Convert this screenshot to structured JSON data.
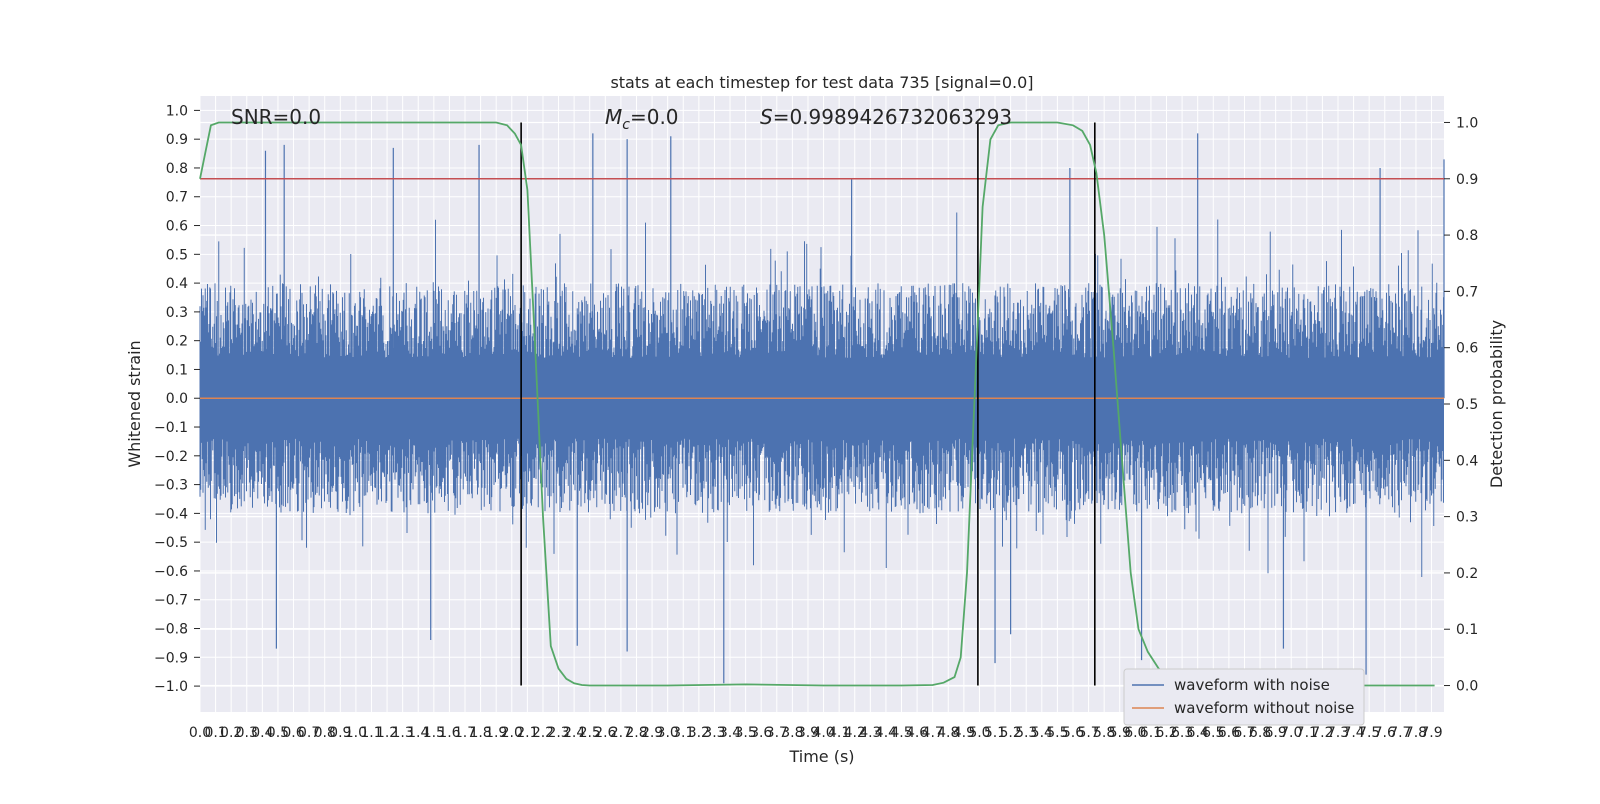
{
  "chart_data": {
    "type": "line",
    "title": "stats at each timestep for test data 735 [signal=0.0]",
    "xlabel": "Time (s)",
    "ylabel_left": "Whitened strain",
    "ylabel_right": "Detection probability",
    "xlim": [
      0.0,
      7.98
    ],
    "ylim_left": [
      -1.09,
      1.05
    ],
    "ylim_right": [
      -0.047,
      1.047
    ],
    "x_tick_labels": [
      "0.0",
      "0.1",
      "0.2",
      "0.3",
      "0.4",
      "0.5",
      "0.6",
      "0.7",
      "0.8",
      "0.9",
      "1.0",
      "1.1",
      "1.2",
      "1.3",
      "1.4",
      "1.5",
      "1.6",
      "1.7",
      "1.8",
      "1.9",
      "2.0",
      "2.1",
      "2.2",
      "2.3",
      "2.4",
      "2.5",
      "2.6",
      "2.7",
      "2.8",
      "2.9",
      "3.0",
      "3.1",
      "3.2",
      "3.3",
      "3.4",
      "3.5",
      "3.6",
      "3.7",
      "3.8",
      "3.9",
      "4.0",
      "4.1",
      "4.2",
      "4.3",
      "4.4",
      "4.5",
      "4.6",
      "4.7",
      "4.8",
      "4.9",
      "5.0",
      "5.1",
      "5.2",
      "5.3",
      "5.4",
      "5.5",
      "5.6",
      "5.7",
      "5.8",
      "5.9",
      "6.0",
      "6.1",
      "6.2",
      "6.3",
      "6.4",
      "6.5",
      "6.6",
      "6.7",
      "6.8",
      "6.9",
      "7.0",
      "7.1",
      "7.2",
      "7.3",
      "7.4",
      "7.5",
      "7.6",
      "7.7",
      "7.8",
      "7.9"
    ],
    "y_left_tick_labels": [
      "−1.0",
      "−0.9",
      "−0.8",
      "−0.7",
      "−0.6",
      "−0.5",
      "−0.4",
      "−0.3",
      "−0.2",
      "−0.1",
      "0.0",
      "0.1",
      "0.2",
      "0.3",
      "0.4",
      "0.5",
      "0.6",
      "0.7",
      "0.8",
      "0.9",
      "1.0"
    ],
    "y_right_tick_labels": [
      "0.0",
      "0.1",
      "0.2",
      "0.3",
      "0.4",
      "0.5",
      "0.6",
      "0.7",
      "0.8",
      "0.9",
      "1.0"
    ],
    "annotations": {
      "snr": "SNR=0.0",
      "mc_symbol": "M",
      "mc_subscript": "c",
      "mc_value": "=0.0",
      "s_symbol": "S",
      "s_value": "=0.9989426732063293"
    },
    "threshold": {
      "value": 0.9,
      "axis": "right",
      "color": "#c44e52"
    },
    "vertical_markers": [
      2.06,
      4.99,
      5.74
    ],
    "series": [
      {
        "name": "waveform with noise",
        "color": "#4c72b0",
        "axis": "left",
        "noise_envelope": {
          "typical_abs_max": 0.4,
          "peak_abs_max": 0.99
        },
        "spikes": [
          {
            "x": 0.42,
            "y": 0.86
          },
          {
            "x": 0.54,
            "y": 0.88
          },
          {
            "x": 1.24,
            "y": 0.87
          },
          {
            "x": 1.79,
            "y": 0.88
          },
          {
            "x": 2.52,
            "y": 0.92
          },
          {
            "x": 2.74,
            "y": 0.9
          },
          {
            "x": 3.02,
            "y": 0.91
          },
          {
            "x": 4.18,
            "y": 0.76
          },
          {
            "x": 5.58,
            "y": 0.8
          },
          {
            "x": 6.4,
            "y": 0.92
          },
          {
            "x": 7.57,
            "y": 0.8
          },
          {
            "x": 7.98,
            "y": 0.83
          },
          {
            "x": 0.49,
            "y": -0.87
          },
          {
            "x": 1.48,
            "y": -0.84
          },
          {
            "x": 2.42,
            "y": -0.86
          },
          {
            "x": 2.74,
            "y": -0.88
          },
          {
            "x": 3.36,
            "y": -0.99
          },
          {
            "x": 5.1,
            "y": -0.92
          },
          {
            "x": 5.2,
            "y": -0.82
          },
          {
            "x": 6.04,
            "y": -0.91
          },
          {
            "x": 6.95,
            "y": -0.87
          },
          {
            "x": 7.48,
            "y": -0.96
          }
        ]
      },
      {
        "name": "waveform without noise",
        "color": "#dd8452",
        "axis": "left",
        "x": [
          0.0,
          7.98
        ],
        "y": [
          0.0,
          0.0
        ]
      },
      {
        "name": "detection probability",
        "color": "#55a868",
        "axis": "right",
        "x": [
          0.0,
          0.07,
          0.12,
          0.3,
          0.6,
          1.0,
          1.5,
          1.9,
          1.97,
          2.02,
          2.06,
          2.1,
          2.15,
          2.2,
          2.25,
          2.3,
          2.35,
          2.4,
          2.45,
          2.5,
          2.6,
          3.0,
          3.5,
          4.0,
          4.5,
          4.7,
          4.77,
          4.84,
          4.88,
          4.92,
          4.97,
          5.02,
          5.07,
          5.12,
          5.2,
          5.5,
          5.6,
          5.66,
          5.71,
          5.75,
          5.8,
          5.86,
          5.92,
          5.97,
          6.02,
          6.08,
          6.15,
          6.25,
          6.4,
          6.6,
          7.0,
          7.5,
          7.92
        ],
        "y": [
          0.9,
          0.995,
          1.0,
          1.0,
          1.0,
          1.0,
          1.0,
          1.0,
          0.995,
          0.98,
          0.96,
          0.88,
          0.6,
          0.3,
          0.07,
          0.03,
          0.012,
          0.004,
          0.001,
          0.0,
          0.0,
          0.0,
          0.002,
          0.0,
          0.0,
          0.001,
          0.005,
          0.015,
          0.05,
          0.2,
          0.52,
          0.85,
          0.97,
          0.995,
          1.0,
          1.0,
          0.995,
          0.985,
          0.96,
          0.91,
          0.8,
          0.6,
          0.38,
          0.2,
          0.1,
          0.06,
          0.03,
          0.01,
          0.001,
          0.0,
          0.0,
          0.0,
          0.0
        ]
      }
    ],
    "legend": {
      "position": "lower-right",
      "entries": [
        {
          "label": "waveform with noise",
          "color": "#4c72b0"
        },
        {
          "label": "waveform without noise",
          "color": "#dd8452"
        }
      ]
    },
    "grid": true,
    "style": {
      "plot_background": "#eaeaf2",
      "grid_color": "#ffffff"
    }
  }
}
